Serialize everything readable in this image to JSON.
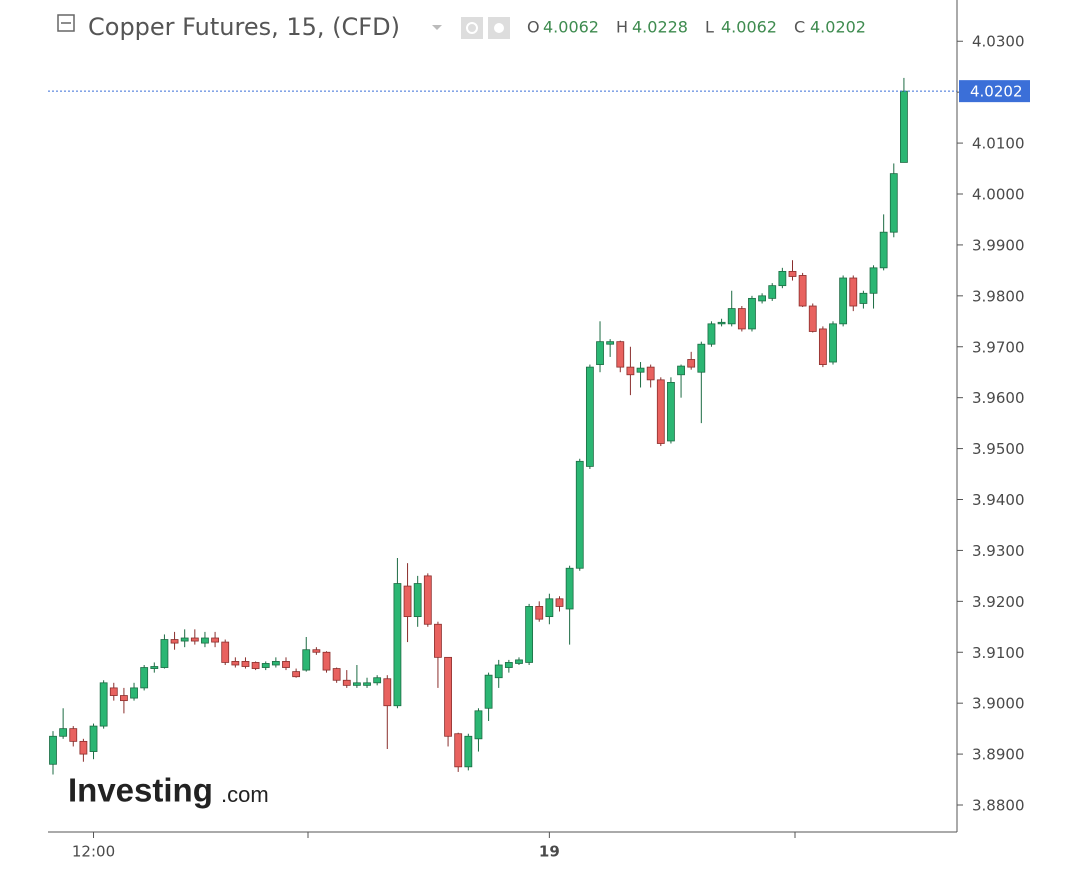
{
  "chart_data": {
    "type": "candlestick",
    "title": "Copper Futures, 15, (CFD)",
    "ohlc_header": [
      {
        "label": "O",
        "value": 4.0062
      },
      {
        "label": "H",
        "value": 4.0228
      },
      {
        "label": "L",
        "value": 4.0062
      },
      {
        "label": "C",
        "value": 4.0202
      }
    ],
    "watermark": {
      "brand": "Investing",
      "suffix": ".com"
    },
    "up_color": "#2bb673",
    "down_color": "#e8625f",
    "categories": [
      null,
      null,
      null,
      null,
      "12:00",
      null,
      null,
      null,
      null,
      null,
      null,
      null,
      null,
      null,
      null,
      null,
      null,
      null,
      null,
      null,
      null,
      null,
      null,
      null,
      null,
      null,
      null,
      null,
      null,
      null,
      null,
      null,
      null,
      null,
      null,
      null,
      null,
      null,
      null,
      null,
      null,
      null,
      null,
      null,
      null,
      null,
      null,
      null,
      null,
      "19",
      null,
      null,
      null,
      null,
      null,
      null,
      null,
      null,
      null,
      null,
      null,
      null,
      null,
      null,
      null,
      null,
      null,
      null,
      null,
      null,
      null,
      null,
      null,
      null,
      null,
      null,
      null,
      null,
      null,
      null,
      null,
      null,
      null,
      null,
      null
    ],
    "open": [
      3.888,
      3.8935,
      3.895,
      3.8925,
      3.8905,
      3.8955,
      3.903,
      3.9015,
      3.901,
      3.903,
      3.9068,
      3.907,
      3.9125,
      3.9122,
      3.9128,
      3.9118,
      3.9128,
      3.912,
      3.9082,
      3.9082,
      3.908,
      3.907,
      3.9075,
      3.9082,
      3.9062,
      3.9065,
      3.9105,
      3.91,
      3.9068,
      3.9045,
      3.9035,
      3.9035,
      3.904,
      3.9048,
      3.8995,
      3.923,
      3.917,
      3.925,
      3.9155,
      3.909,
      3.894,
      3.8875,
      3.893,
      3.899,
      3.905,
      3.907,
      3.9078,
      3.908,
      3.919,
      3.917,
      3.9205,
      3.9185,
      3.9265,
      3.9465,
      3.9665,
      3.9705,
      3.971,
      3.966,
      3.965,
      3.966,
      3.9635,
      3.9515,
      3.9645,
      3.9675,
      3.965,
      3.9705,
      3.9745,
      3.9745,
      3.9775,
      3.9735,
      3.979,
      3.9795,
      3.982,
      3.9848,
      3.984,
      3.978,
      3.9735,
      3.967,
      3.9745,
      3.9835,
      3.9785,
      3.9805,
      3.9855,
      3.9925,
      4.0062
    ],
    "high": [
      3.8945,
      3.899,
      3.8955,
      3.893,
      3.896,
      3.9045,
      3.904,
      3.903,
      3.904,
      3.9075,
      3.908,
      3.9135,
      3.914,
      3.9145,
      3.9145,
      3.914,
      3.914,
      3.9125,
      3.909,
      3.909,
      3.9082,
      3.9082,
      3.909,
      3.909,
      3.9068,
      3.913,
      3.911,
      3.9102,
      3.907,
      3.9065,
      3.9075,
      3.905,
      3.9055,
      3.9055,
      3.9285,
      3.9275,
      3.925,
      3.9255,
      3.916,
      3.909,
      3.8942,
      3.894,
      3.899,
      3.906,
      3.9085,
      3.9085,
      3.909,
      3.9195,
      3.92,
      3.9215,
      3.921,
      3.927,
      3.948,
      3.9665,
      3.975,
      3.9715,
      3.9712,
      3.97,
      3.967,
      3.9665,
      3.964,
      3.964,
      3.9665,
      3.969,
      3.971,
      3.975,
      3.9755,
      3.981,
      3.978,
      3.98,
      3.9805,
      3.9825,
      3.9855,
      3.987,
      3.9845,
      3.9785,
      3.974,
      3.975,
      3.984,
      3.984,
      3.981,
      3.986,
      3.996,
      4.006,
      4.0228
    ],
    "low": [
      3.886,
      3.893,
      3.8915,
      3.8885,
      3.889,
      3.895,
      3.9005,
      3.898,
      3.9005,
      3.9025,
      3.906,
      3.9068,
      3.9105,
      3.911,
      3.9115,
      3.911,
      3.911,
      3.9075,
      3.907,
      3.9068,
      3.9065,
      3.9065,
      3.907,
      3.9065,
      3.905,
      3.9062,
      3.9095,
      3.906,
      3.904,
      3.903,
      3.903,
      3.903,
      3.9035,
      3.891,
      3.899,
      3.912,
      3.915,
      3.915,
      3.903,
      3.8915,
      3.8865,
      3.8868,
      3.8905,
      3.8965,
      3.903,
      3.906,
      3.9075,
      3.9075,
      3.916,
      3.9155,
      3.918,
      3.9115,
      3.926,
      3.946,
      3.965,
      3.968,
      3.965,
      3.9605,
      3.962,
      3.962,
      3.9505,
      3.951,
      3.96,
      3.9655,
      3.955,
      3.97,
      3.974,
      3.974,
      3.973,
      3.973,
      3.9785,
      3.979,
      3.9815,
      3.983,
      3.9778,
      3.9728,
      3.966,
      3.9665,
      3.974,
      3.977,
      3.9775,
      3.9775,
      3.985,
      3.9915,
      4.0062
    ],
    "close": [
      3.8935,
      3.895,
      3.8925,
      3.89,
      3.8955,
      3.904,
      3.9015,
      3.9005,
      3.903,
      3.907,
      3.9072,
      3.9125,
      3.9118,
      3.9128,
      3.9122,
      3.9128,
      3.912,
      3.908,
      3.9075,
      3.9072,
      3.9068,
      3.9078,
      3.9082,
      3.907,
      3.9052,
      3.9105,
      3.91,
      3.9065,
      3.9045,
      3.9035,
      3.904,
      3.904,
      3.905,
      3.8995,
      3.9235,
      3.917,
      3.9235,
      3.9155,
      3.909,
      3.8935,
      3.8875,
      3.8935,
      3.8985,
      3.9055,
      3.9075,
      3.908,
      3.9085,
      3.919,
      3.9165,
      3.9205,
      3.919,
      3.9265,
      3.9475,
      3.966,
      3.971,
      3.971,
      3.966,
      3.9645,
      3.9658,
      3.9635,
      3.951,
      3.963,
      3.9662,
      3.966,
      3.9705,
      3.9745,
      3.9748,
      3.9775,
      3.9735,
      3.9795,
      3.98,
      3.982,
      3.9848,
      3.9838,
      3.978,
      3.973,
      3.9665,
      3.9745,
      3.9835,
      3.978,
      3.9805,
      3.9855,
      3.9925,
      4.004,
      4.0202
    ],
    "ylim": [
      3.8747,
      4.0381
    ],
    "yticks": [
      {
        "value": 3.88,
        "label": "3.8800"
      },
      {
        "value": 3.89,
        "label": "3.8900"
      },
      {
        "value": 3.9,
        "label": "3.9000"
      },
      {
        "value": 3.91,
        "label": "3.9100"
      },
      {
        "value": 3.92,
        "label": "3.9200"
      },
      {
        "value": 3.93,
        "label": "3.9300"
      },
      {
        "value": 3.94,
        "label": "3.9400"
      },
      {
        "value": 3.95,
        "label": "3.9500"
      },
      {
        "value": 3.96,
        "label": "3.9600"
      },
      {
        "value": 3.97,
        "label": "3.9700"
      },
      {
        "value": 3.98,
        "label": "3.9800"
      },
      {
        "value": 3.99,
        "label": "3.9900"
      },
      {
        "value": 4.0,
        "label": "4.0000"
      },
      {
        "value": 4.01,
        "label": "4.0100"
      },
      {
        "value": 4.02,
        "label": "4.0200"
      },
      {
        "value": 4.03,
        "label": "4.0300"
      }
    ],
    "price_line_color": "#3b6fd8",
    "grid": false
  }
}
